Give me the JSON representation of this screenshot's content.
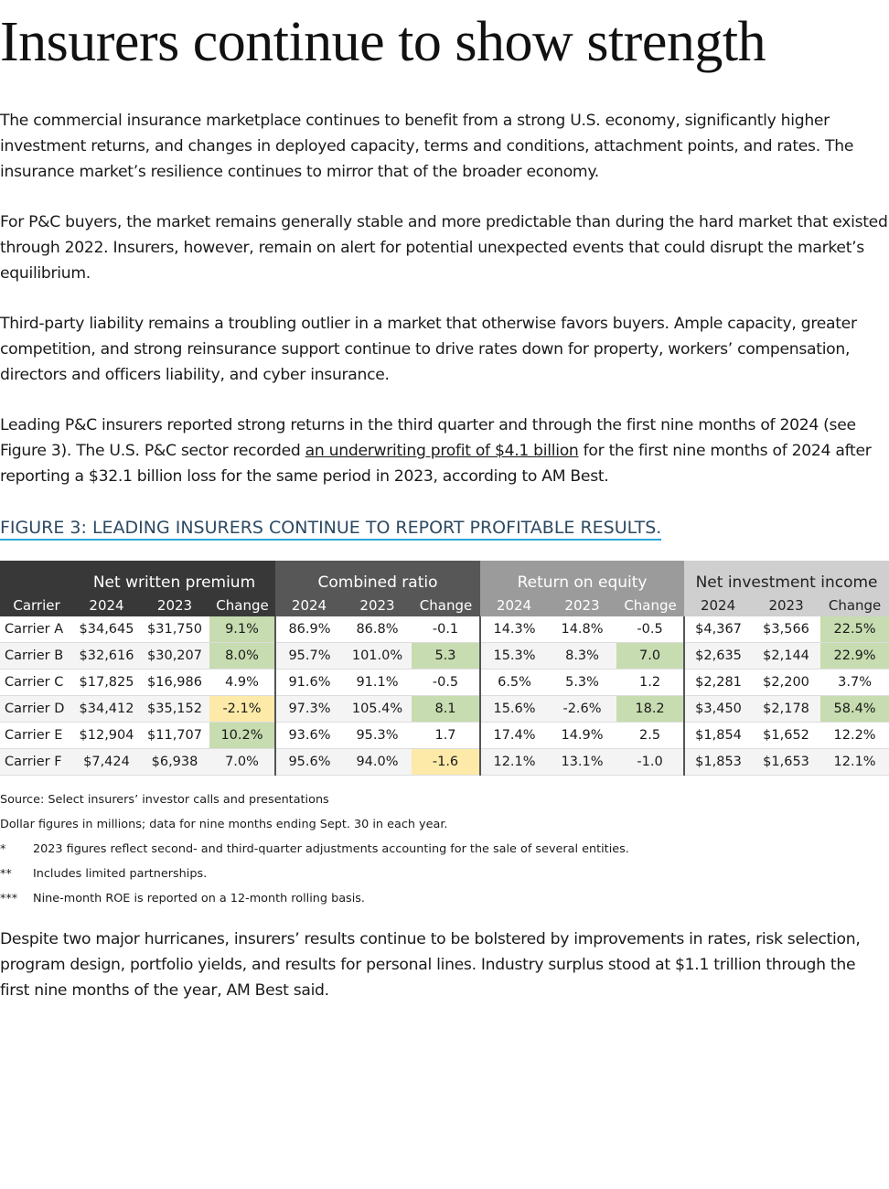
{
  "title": "Insurers continue to show strength",
  "paragraphs": [
    "The commercial insurance marketplace continues to benefit from a strong U.S. economy, significantly higher investment returns, and changes in deployed capacity, terms and conditions, attachment points, and rates. The insurance market’s resilience continues to mirror that of the broader economy.",
    "For P&C buyers, the market remains generally stable and more predictable than during the hard market that existed through 2022. Insurers, however, remain on alert for potential unexpected events that could disrupt the market’s equilibrium.",
    "Third-party liability remains a troubling outlier in a market that otherwise favors buyers. Ample capacity, greater competition, and strong reinsurance support continue to drive rates down for property, workers’ compensation, directors and officers liability, and cyber insurance."
  ],
  "linked_paragraph": {
    "before": "Leading P&C insurers reported strong returns in the third quarter and through the first nine months of 2024 (see Figure 3). The U.S. P&C sector recorded ",
    "link": "an underwriting profit of $4.1 billion",
    "after": " for the first nine months of 2024 after reporting a $32.1 billion loss for the same period in 2023, according to AM Best."
  },
  "figure": {
    "caption": "FIGURE 3: LEADING INSURERS CONTINUE TO REPORT PROFITABLE RESULTS.",
    "groups": [
      "Net written premium",
      "Combined ratio",
      "Return on equity",
      "Net investment income"
    ],
    "columns": [
      "Carrier",
      "2024",
      "2023",
      "Change",
      "2024",
      "2023",
      "Change",
      "2024",
      "2023",
      "Change",
      "2024",
      "2023",
      "Change"
    ],
    "rows": [
      [
        "Carrier A",
        "$34,645",
        "$31,750",
        "9.1%",
        "86.9%",
        "86.8%",
        "-0.1",
        "14.3%",
        "14.8%",
        "-0.5",
        "$4,367",
        "$3,566",
        "22.5%"
      ],
      [
        "Carrier B",
        "$32,616",
        "$30,207",
        "8.0%",
        "95.7%",
        "101.0%",
        "5.3",
        "15.3%",
        "8.3%",
        "7.0",
        "$2,635",
        "$2,144",
        "22.9%"
      ],
      [
        "Carrier C",
        "$17,825",
        "$16,986",
        "4.9%",
        "91.6%",
        "91.1%",
        "-0.5",
        "6.5%",
        "5.3%",
        "1.2",
        "$2,281",
        "$2,200",
        "3.7%"
      ],
      [
        "Carrier D",
        "$34,412",
        "$35,152",
        "-2.1%",
        "97.3%",
        "105.4%",
        "8.1",
        "15.6%",
        "-2.6%",
        "18.2",
        "$3,450",
        "$2,178",
        "58.4%"
      ],
      [
        "Carrier E",
        "$12,904",
        "$11,707",
        "10.2%",
        "93.6%",
        "95.3%",
        "1.7",
        "17.4%",
        "14.9%",
        "2.5",
        "$1,854",
        "$1,652",
        "12.2%"
      ],
      [
        "Carrier F",
        "$7,424",
        "$6,938",
        "7.0%",
        "95.6%",
        "94.0%",
        "-1.6",
        "12.1%",
        "13.1%",
        "-1.0",
        "$1,853",
        "$1,653",
        "12.1%"
      ]
    ],
    "source": "Source: Select insurers’ investor calls and presentations",
    "note": "Dollar figures in millions; data for nine months ending Sept. 30 in each year.",
    "footnotes": [
      {
        "marker": "*",
        "text": "2023 figures reflect second- and third-quarter adjustments accounting for the sale of several entities."
      },
      {
        "marker": "**",
        "text": "Includes limited partnerships."
      },
      {
        "marker": "***",
        "text": "Nine-month ROE is reported on a 12-month rolling basis."
      }
    ]
  },
  "closing": "Despite two major hurricanes, insurers’ results continue to be bolstered by improvements in rates, risk selection, program design, portfolio yields, and results for personal lines. Industry surplus stood at $1.1 trillion through the first nine months of the year, AM Best said."
}
